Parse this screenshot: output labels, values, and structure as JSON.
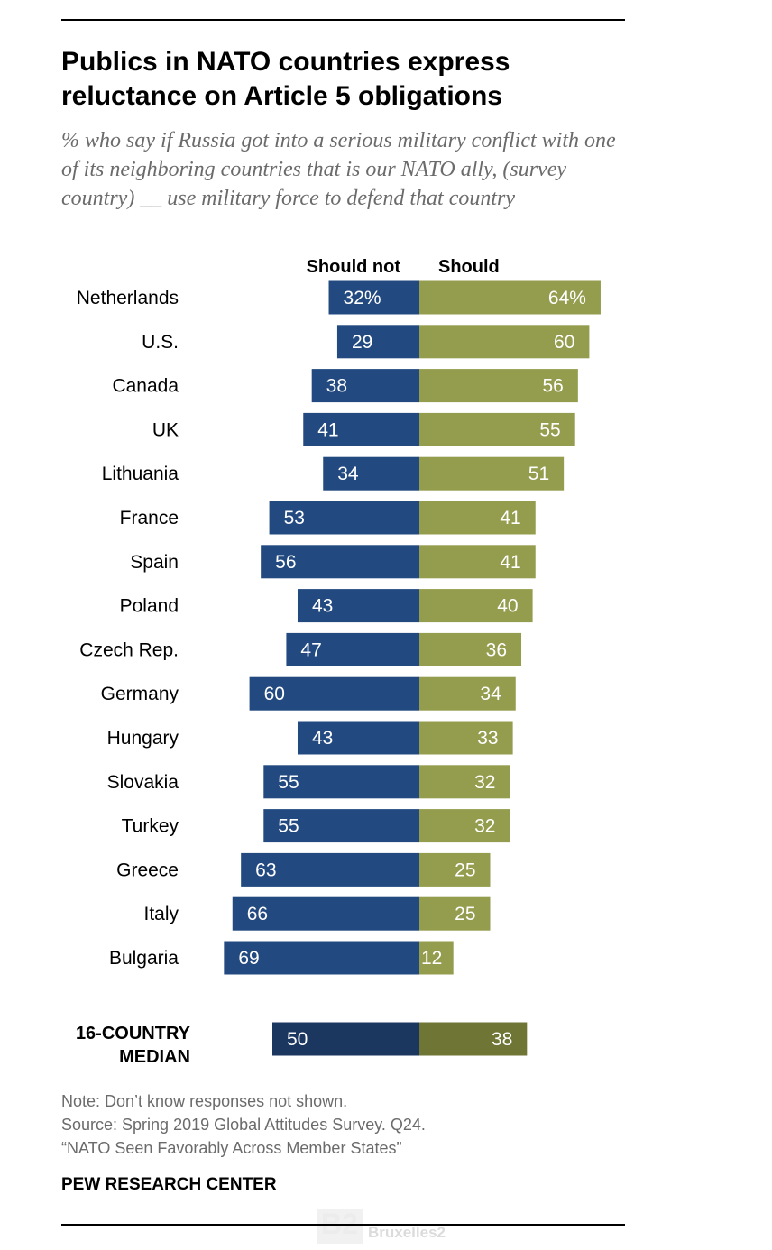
{
  "title": "Publics in NATO countries express reluctance on Article 5 obligations",
  "subtitle": "% who say if Russia got into a serious military conflict with one of its neighboring countries that is our NATO ally, (survey country) __ use military force to defend that country",
  "chart_data": {
    "type": "bar",
    "orientation": "horizontal-diverging",
    "series": [
      {
        "name": "Should not",
        "color": "#234a80",
        "values": [
          32,
          29,
          38,
          41,
          34,
          53,
          56,
          43,
          47,
          60,
          43,
          55,
          55,
          63,
          66,
          69
        ]
      },
      {
        "name": "Should",
        "color": "#949c4d",
        "values": [
          64,
          60,
          56,
          55,
          51,
          41,
          41,
          40,
          36,
          34,
          33,
          32,
          32,
          25,
          25,
          12
        ]
      }
    ],
    "categories": [
      "Netherlands",
      "U.S.",
      "Canada",
      "UK",
      "Lithuania",
      "France",
      "Spain",
      "Poland",
      "Czech Rep.",
      "Germany",
      "Hungary",
      "Slovakia",
      "Turkey",
      "Greece",
      "Italy",
      "Bulgaria"
    ],
    "first_row_suffix": "%",
    "median": {
      "label_line1": "16-COUNTRY",
      "label_line2": "MEDIAN",
      "should_not": 50,
      "should": 38,
      "colors": {
        "should_not": "#1b3760",
        "should": "#6f7535"
      }
    }
  },
  "notes": {
    "line1": "Note: Don’t know responses not shown.",
    "line2": "Source: Spring 2019 Global Attitudes Survey. Q24.",
    "line3": "“NATO Seen Favorably Across Member States”"
  },
  "credit": "PEW RESEARCH CENTER",
  "watermark": {
    "mark": "B2",
    "text": "Bruxelles2"
  }
}
